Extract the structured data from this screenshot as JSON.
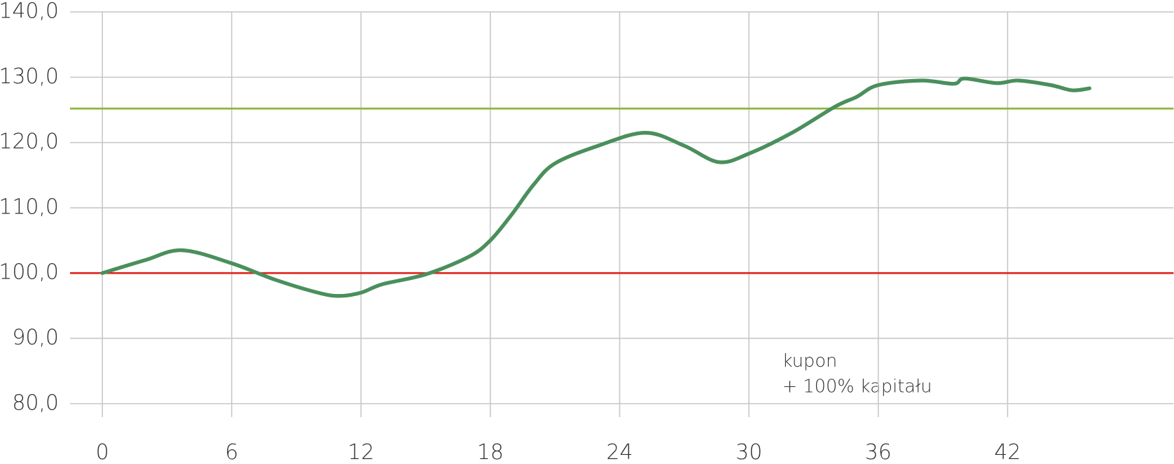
{
  "chart_data": {
    "type": "line",
    "x": [
      0,
      2,
      3.7,
      6,
      8,
      10,
      11,
      12,
      13,
      15,
      17,
      18,
      19,
      20,
      21,
      23,
      25.2,
      27,
      28.6,
      30,
      32,
      34,
      35,
      36,
      38,
      39.5,
      40,
      41.5,
      42.5,
      44,
      45,
      45.8
    ],
    "series": [
      {
        "color": "#4a8f5c",
        "values": [
          100,
          102,
          103.5,
          101.5,
          99,
          97,
          96.5,
          97,
          98.3,
          99.8,
          102.5,
          105,
          109,
          113.5,
          116.8,
          119.5,
          121.5,
          119.5,
          117,
          118.3,
          121.5,
          125.5,
          127,
          128.8,
          129.5,
          129,
          129.8,
          129.1,
          129.5,
          128.8,
          128,
          128.3
        ]
      }
    ],
    "reference_lines": [
      {
        "value": 100,
        "color": "#e0201b"
      },
      {
        "value": 125.2,
        "color": "#8db53c"
      }
    ],
    "annotation": [
      "kupon",
      "+ 100% kapitału"
    ],
    "xlim": [
      -1.5,
      49.7
    ],
    "xticks": [
      0,
      6,
      12,
      18,
      24,
      30,
      36,
      42
    ],
    "ylim": [
      80,
      140
    ],
    "yticks": [
      {
        "value": 80,
        "label": "80,0"
      },
      {
        "value": 90,
        "label": "90,0"
      },
      {
        "value": 100,
        "label": "100,0"
      },
      {
        "value": 110,
        "label": "110,0"
      },
      {
        "value": 120,
        "label": "120,0"
      },
      {
        "value": 130,
        "label": "130,0"
      },
      {
        "value": 140,
        "label": "140,0"
      }
    ],
    "grid": true
  }
}
